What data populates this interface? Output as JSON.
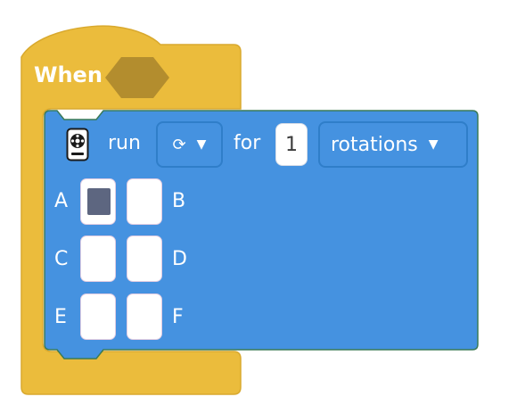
{
  "hat_block": {
    "label": "When",
    "color": "#ebbc3c",
    "condition_slot_color": "#b38d2e"
  },
  "run_block": {
    "color": "#4592e0",
    "border_color": "#3a7a57",
    "motor_icon": "motor-icon",
    "run_label": "run",
    "direction_icon": "clockwise-arrow-icon",
    "direction_glyph": "⟳",
    "direction_caret": "▼",
    "for_label": "for",
    "count_value": "1",
    "unit_value": "rotations",
    "unit_caret": "▼",
    "ports": [
      {
        "letter": "A",
        "selected": true
      },
      {
        "letter": "B",
        "selected": false
      },
      {
        "letter": "C",
        "selected": false
      },
      {
        "letter": "D",
        "selected": false
      },
      {
        "letter": "E",
        "selected": false
      },
      {
        "letter": "F",
        "selected": false
      }
    ],
    "selected_port_color": "#5d6680"
  }
}
